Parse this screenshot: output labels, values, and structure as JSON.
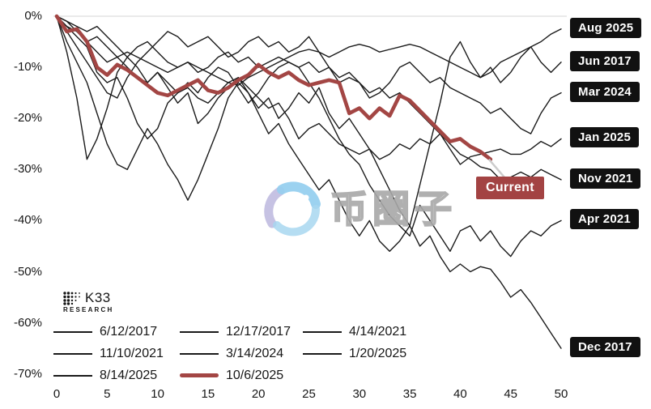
{
  "watermark": {
    "text": "币圈子"
  },
  "branding": {
    "logo_text": "K33",
    "logo_subtext": "RESEARCH"
  },
  "current_label": "Current",
  "colors": {
    "line_black": "#1a1a1a",
    "line_red": "#a34644",
    "badge_black": "#111111",
    "current_badge_red": "#a34343",
    "gridline": "#e4e4e4",
    "connector": "#cccccc"
  },
  "chart_data": {
    "type": "line",
    "title": "",
    "xlabel": "",
    "ylabel": "",
    "x_ticks": [
      0,
      5,
      10,
      15,
      20,
      25,
      30,
      35,
      40,
      45,
      50
    ],
    "y_ticks": [
      "0%",
      "-10%",
      "-20%",
      "-30%",
      "-40%",
      "-50%",
      "-60%",
      "-70%"
    ],
    "y_tick_values": [
      0,
      -10,
      -20,
      -30,
      -40,
      -50,
      -60,
      -70
    ],
    "xlim": [
      0,
      50
    ],
    "ylim": [
      -70,
      0
    ],
    "grid": "horizontal baseline at 0% only",
    "legend_position": "bottom-left",
    "series": [
      {
        "name": "6/12/2017",
        "end_label": "Jun 2017",
        "color": "black",
        "width": 1.4,
        "values": [
          0,
          -7,
          -16,
          -28,
          -24,
          -18,
          -11,
          -8,
          -10,
          -13,
          -11,
          -14,
          -17,
          -15,
          -21,
          -19,
          -16,
          -14,
          -12,
          -15,
          -18,
          -16,
          -20,
          -18,
          -15,
          -17,
          -14,
          -19,
          -22,
          -20,
          -23,
          -26,
          -30,
          -34,
          -38,
          -41,
          -33,
          -25,
          -17,
          -8,
          -5,
          -9,
          -12,
          -10,
          -13,
          -11,
          -8,
          -6,
          -9,
          -11,
          -9
        ]
      },
      {
        "name": "12/17/2017",
        "end_label": "Dec 2017",
        "color": "black",
        "width": 1.4,
        "values": [
          0,
          -5,
          -9,
          -13,
          -19,
          -25,
          -29,
          -30,
          -26,
          -22,
          -25,
          -29,
          -32,
          -36,
          -32,
          -27,
          -22,
          -16,
          -13,
          -15,
          -19,
          -23,
          -21,
          -25,
          -28,
          -31,
          -34,
          -32,
          -36,
          -40,
          -43,
          -40,
          -44,
          -46,
          -44,
          -41,
          -45,
          -43,
          -47,
          -50,
          -48.5,
          -50,
          -49,
          -49.5,
          -52,
          -55,
          -53.5,
          -56,
          -59,
          -62,
          -65
        ]
      },
      {
        "name": "4/14/2021",
        "end_label": "Apr 2021",
        "color": "black",
        "width": 1.4,
        "values": [
          0,
          -2,
          -4,
          -6,
          -11,
          -13,
          -12,
          -16,
          -21,
          -24,
          -22,
          -17,
          -15,
          -13,
          -15,
          -12,
          -10,
          -11,
          -14,
          -17,
          -15,
          -12,
          -10,
          -9,
          -10,
          -13,
          -16,
          -20,
          -24,
          -27,
          -29,
          -33,
          -36,
          -39,
          -41,
          -43,
          -37,
          -40,
          -43,
          -46,
          -42,
          -41,
          -44,
          -42,
          -45,
          -47,
          -44,
          -42,
          -43,
          -41,
          -40
        ]
      },
      {
        "name": "11/10/2021",
        "end_label": "Nov 2021",
        "color": "black",
        "width": 1.4,
        "values": [
          0,
          -1,
          -3,
          -5,
          -4,
          -6,
          -8,
          -10,
          -12,
          -13,
          -11,
          -13,
          -15,
          -14,
          -16,
          -17,
          -15,
          -13,
          -12,
          -14,
          -16,
          -18,
          -17,
          -20,
          -24,
          -22,
          -21,
          -23,
          -25,
          -26,
          -27,
          -26,
          -28,
          -27,
          -25,
          -26,
          -24,
          -25,
          -23,
          -25,
          -27,
          -28,
          -29.5,
          -30,
          -32,
          -31.5,
          -30.5,
          -31.5,
          -30,
          -31,
          -32
        ]
      },
      {
        "name": "3/14/2024",
        "end_label": "Mar 2024",
        "color": "black",
        "width": 1.4,
        "values": [
          0,
          -3,
          -6,
          -9,
          -12,
          -15,
          -16,
          -12,
          -9,
          -7,
          -5,
          -3,
          -4,
          -6,
          -5,
          -4,
          -6,
          -8,
          -7,
          -5,
          -4,
          -6,
          -5,
          -7,
          -6,
          -4,
          -7,
          -10,
          -13,
          -12,
          -13,
          -16,
          -15,
          -13,
          -10,
          -9,
          -11,
          -13,
          -12,
          -14,
          -15,
          -16,
          -17,
          -19,
          -18,
          -20,
          -22,
          -23,
          -19,
          -16,
          -15
        ]
      },
      {
        "name": "1/20/2025",
        "end_label": "Jan 2025",
        "color": "black",
        "width": 1.4,
        "values": [
          0,
          -1,
          -2,
          -3,
          -2,
          -4,
          -6,
          -8,
          -6,
          -5,
          -7,
          -9,
          -10,
          -9,
          -11,
          -10,
          -8,
          -7,
          -9,
          -8,
          -10,
          -9,
          -8,
          -9,
          -10,
          -9,
          -11,
          -10,
          -12,
          -11,
          -13,
          -15,
          -14,
          -16,
          -15,
          -17,
          -19,
          -21,
          -23,
          -26,
          -29,
          -27.5,
          -27,
          -26.5,
          -26,
          -27,
          -27,
          -26,
          -24.5,
          -25.5,
          -24
        ]
      },
      {
        "name": "8/14/2025",
        "end_label": "Aug 2025",
        "color": "black",
        "width": 1.4,
        "values": [
          0,
          -2,
          -3,
          -5,
          -7,
          -9,
          -8,
          -7,
          -8,
          -9,
          -10,
          -11,
          -10,
          -9,
          -10,
          -11,
          -12,
          -13,
          -13.5,
          -12,
          -11,
          -10,
          -9,
          -8,
          -7,
          -6.5,
          -7,
          -8,
          -7,
          -6,
          -5.5,
          -6,
          -7,
          -6.5,
          -6,
          -5.5,
          -6,
          -7,
          -8,
          -9,
          -10,
          -11,
          -12,
          -11,
          -9,
          -8,
          -7,
          -6,
          -5,
          -3.5,
          -2.5
        ]
      },
      {
        "name": "10/6/2025",
        "end_label": "Current",
        "color": "red",
        "width": 4.6,
        "values": [
          0,
          -3,
          -2.5,
          -5,
          -10,
          -11.5,
          -9.5,
          -10.5,
          -12,
          -13.5,
          -15,
          -15.5,
          -14.5,
          -13.5,
          -12.5,
          -14.5,
          -15,
          -14,
          -12.5,
          -11.5,
          -9.5,
          -11,
          -12,
          -11,
          -12.5,
          -13.5,
          -13,
          -12.5,
          -13,
          -19,
          -18,
          -20,
          -18,
          -19.5,
          -15.5,
          -16.5,
          -18.5,
          -20.5,
          -22.5,
          -24.5,
          -24,
          -25.5,
          -26.5,
          -28
        ]
      }
    ]
  }
}
